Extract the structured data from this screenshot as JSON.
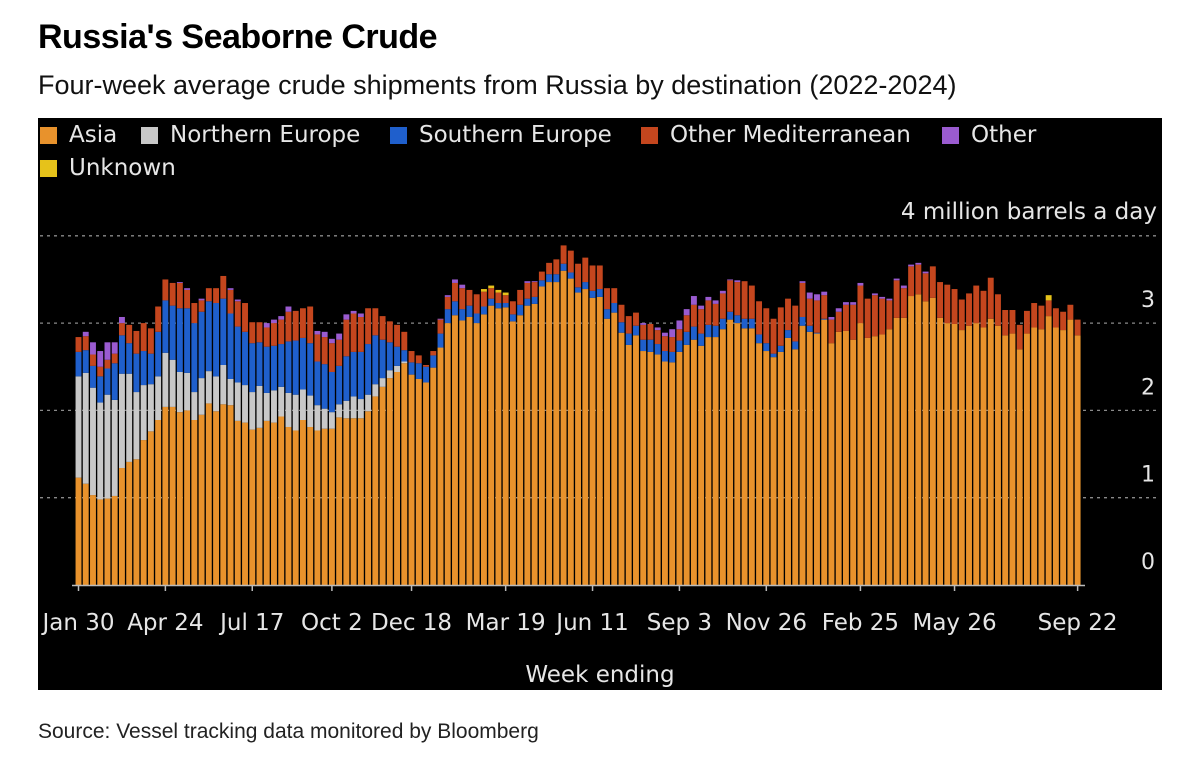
{
  "header": {
    "title": "Russia's Seaborne Crude",
    "subtitle": "Four-week average crude shipments from Russia by destination (2022-2024)"
  },
  "footer": {
    "source": "Source: Vessel tracking data monitored by Bloomberg"
  },
  "chart_data": {
    "type": "bar",
    "stacked": true,
    "title": "Russia's Seaborne Crude",
    "xlabel": "Week ending",
    "ylabel": "4 million barrels a day",
    "ylim": [
      0,
      4
    ],
    "y_ticks": [
      "0",
      "1",
      "2",
      "3"
    ],
    "grid": true,
    "legend_position": "top-left",
    "x_start": "2022-01-30",
    "x_end": "2024-09-22",
    "x_step": "weekly",
    "x_tick_labels": [
      {
        "label": "Jan 30",
        "index": 0
      },
      {
        "label": "Apr 24",
        "index": 12
      },
      {
        "label": "Jul 17",
        "index": 24
      },
      {
        "label": "Oct 2",
        "index": 35
      },
      {
        "label": "Dec 18",
        "index": 46
      },
      {
        "label": "Mar 19",
        "index": 59
      },
      {
        "label": "Jun 11",
        "index": 71
      },
      {
        "label": "Sep 3",
        "index": 83
      },
      {
        "label": "Nov 26",
        "index": 95
      },
      {
        "label": "Feb 25",
        "index": 108
      },
      {
        "label": "May 26",
        "index": 121
      },
      {
        "label": "Sep 22",
        "index": 138
      }
    ],
    "series": [
      {
        "name": "Asia",
        "color": "#e8922c",
        "values": [
          1.23,
          1.16,
          1.03,
          0.98,
          0.99,
          1.02,
          1.34,
          1.41,
          1.44,
          1.66,
          1.76,
          1.89,
          2.04,
          2.04,
          1.98,
          2.0,
          1.89,
          1.95,
          2.08,
          1.99,
          2.07,
          2.06,
          1.88,
          1.86,
          1.78,
          1.8,
          1.88,
          1.86,
          1.93,
          1.81,
          1.77,
          1.89,
          1.81,
          1.77,
          1.79,
          1.79,
          1.92,
          1.91,
          1.91,
          1.91,
          1.99,
          2.16,
          2.27,
          2.37,
          2.44,
          2.54,
          2.41,
          2.36,
          2.32,
          2.49,
          2.72,
          3.0,
          3.09,
          3.03,
          3.07,
          3.0,
          3.1,
          3.2,
          3.17,
          3.18,
          3.02,
          3.09,
          3.2,
          3.22,
          3.42,
          3.47,
          3.47,
          3.6,
          3.51,
          3.35,
          3.39,
          3.29,
          3.3,
          3.05,
          3.12,
          2.89,
          2.75,
          2.86,
          2.68,
          2.67,
          2.64,
          2.56,
          2.55,
          2.67,
          2.75,
          2.81,
          2.74,
          2.84,
          2.84,
          2.93,
          3.04,
          3.0,
          2.94,
          2.94,
          2.77,
          2.68,
          2.61,
          2.67,
          2.83,
          2.7,
          2.97,
          2.9,
          2.88,
          3.04,
          2.77,
          2.9,
          2.91,
          2.81,
          3.0,
          2.83,
          2.85,
          2.87,
          2.93,
          3.06,
          3.06,
          3.31,
          3.33,
          3.25,
          3.29,
          3.06,
          3.0,
          2.99,
          2.92,
          2.97,
          3.0,
          2.95,
          3.05,
          2.97,
          2.86,
          2.88,
          2.7,
          2.88,
          2.95,
          2.93,
          3.08,
          2.95,
          2.92,
          3.04,
          2.86
        ]
      },
      {
        "name": "Northern Europe",
        "color": "#c8c8c8",
        "values": [
          1.16,
          1.27,
          1.23,
          1.11,
          1.19,
          1.1,
          1.08,
          1.01,
          0.77,
          0.63,
          0.54,
          0.5,
          0.62,
          0.54,
          0.46,
          0.43,
          0.32,
          0.42,
          0.37,
          0.4,
          0.45,
          0.3,
          0.44,
          0.43,
          0.43,
          0.48,
          0.32,
          0.37,
          0.34,
          0.39,
          0.41,
          0.35,
          0.36,
          0.29,
          0.23,
          0.19,
          0.15,
          0.2,
          0.25,
          0.22,
          0.19,
          0.14,
          0.1,
          0.09,
          0.07,
          0.02,
          0,
          0,
          0,
          0,
          0,
          0,
          0,
          0,
          0,
          0,
          0,
          0,
          0,
          0,
          0,
          0,
          0,
          0,
          0,
          0,
          0,
          0,
          0,
          0,
          0,
          0,
          0,
          0,
          0,
          0,
          0,
          0,
          0,
          0,
          0,
          0,
          0,
          0,
          0,
          0,
          0,
          0,
          0,
          0,
          0,
          0,
          0,
          0,
          0,
          0,
          0,
          0,
          0,
          0,
          0,
          0,
          0,
          0,
          0,
          0,
          0,
          0,
          0,
          0,
          0,
          0,
          0,
          0,
          0,
          0,
          0,
          0,
          0,
          0,
          0,
          0,
          0,
          0,
          0,
          0,
          0,
          0,
          0,
          0,
          0,
          0,
          0,
          0,
          0,
          0,
          0,
          0,
          0
        ]
      },
      {
        "name": "Southern Europe",
        "color": "#1f5fcc",
        "values": [
          0.28,
          0.26,
          0.25,
          0.3,
          0.3,
          0.42,
          0.44,
          0.35,
          0.44,
          0.39,
          0.35,
          0.51,
          0.6,
          0.62,
          0.73,
          0.74,
          0.79,
          0.76,
          0.8,
          0.84,
          0.76,
          0.75,
          0.64,
          0.61,
          0.56,
          0.5,
          0.53,
          0.51,
          0.49,
          0.59,
          0.62,
          0.59,
          0.6,
          0.5,
          0.51,
          0.46,
          0.44,
          0.51,
          0.51,
          0.54,
          0.58,
          0.56,
          0.44,
          0.32,
          0.22,
          0.13,
          0.14,
          0.18,
          0.18,
          0.14,
          0.16,
          0.16,
          0.16,
          0.13,
          0.13,
          0.11,
          0.09,
          0.08,
          0.06,
          0.05,
          0.08,
          0.12,
          0.08,
          0.08,
          0.07,
          0.09,
          0.09,
          0.08,
          0.07,
          0.06,
          0.08,
          0.08,
          0.09,
          0.11,
          0.11,
          0.12,
          0.13,
          0.11,
          0.13,
          0.14,
          0.12,
          0.12,
          0.12,
          0.13,
          0.15,
          0.15,
          0.14,
          0.14,
          0.13,
          0.12,
          0.09,
          0.09,
          0.11,
          0.11,
          0.1,
          0.09,
          0.04,
          0.07,
          0.09,
          0.09,
          0.1,
          0.07,
          0.01,
          0.01,
          0,
          0,
          0,
          0,
          0,
          0,
          0,
          0,
          0,
          0,
          0,
          0,
          0,
          0,
          0,
          0,
          0,
          0,
          0,
          0,
          0,
          0,
          0,
          0,
          0,
          0,
          0,
          0,
          0,
          0,
          0,
          0,
          0,
          0,
          0
        ]
      },
      {
        "name": "Other Mediterranean",
        "color": "#c4461e",
        "values": [
          0.17,
          0.16,
          0.13,
          0.11,
          0.1,
          0.11,
          0.14,
          0.21,
          0.26,
          0.32,
          0.29,
          0.29,
          0.24,
          0.26,
          0.29,
          0.21,
          0.23,
          0.13,
          0.15,
          0.17,
          0.26,
          0.27,
          0.29,
          0.33,
          0.24,
          0.23,
          0.22,
          0.26,
          0.28,
          0.34,
          0.34,
          0.34,
          0.42,
          0.31,
          0.31,
          0.33,
          0.3,
          0.42,
          0.44,
          0.4,
          0.41,
          0.31,
          0.27,
          0.24,
          0.25,
          0.21,
          0.13,
          0.09,
          0.02,
          0.05,
          0.16,
          0.14,
          0.21,
          0.24,
          0.18,
          0.22,
          0.17,
          0.12,
          0.12,
          0.09,
          0.15,
          0.17,
          0.18,
          0.17,
          0.1,
          0.13,
          0.17,
          0.21,
          0.25,
          0.27,
          0.28,
          0.29,
          0.27,
          0.24,
          0.17,
          0.2,
          0.2,
          0.15,
          0.17,
          0.18,
          0.16,
          0.17,
          0.17,
          0.13,
          0.19,
          0.25,
          0.28,
          0.28,
          0.25,
          0.29,
          0.36,
          0.38,
          0.43,
          0.38,
          0.38,
          0.4,
          0.4,
          0.44,
          0.36,
          0.41,
          0.39,
          0.31,
          0.37,
          0.27,
          0.27,
          0.23,
          0.3,
          0.4,
          0.43,
          0.45,
          0.47,
          0.41,
          0.33,
          0.43,
          0.34,
          0.34,
          0.34,
          0.32,
          0.36,
          0.41,
          0.44,
          0.4,
          0.35,
          0.37,
          0.43,
          0.42,
          0.47,
          0.36,
          0.29,
          0.27,
          0.28,
          0.26,
          0.28,
          0.27,
          0.18,
          0.22,
          0.21,
          0.17,
          0.18
        ]
      },
      {
        "name": "Other",
        "color": "#9a5bd0",
        "values": [
          0,
          0.05,
          0.14,
          0.18,
          0.2,
          0.13,
          0.07,
          0,
          0,
          0,
          0,
          0,
          0,
          0,
          0.01,
          0.02,
          0,
          0.02,
          0,
          0,
          0,
          0.02,
          0.02,
          0,
          0,
          0,
          0.05,
          0.04,
          0.04,
          0.06,
          0,
          0,
          0,
          0.04,
          0.06,
          0.05,
          0.07,
          0.06,
          0.03,
          0.04,
          0,
          0,
          0,
          0,
          0,
          0,
          0,
          0,
          0,
          0,
          0.01,
          0.02,
          0.04,
          0.04,
          0,
          0,
          0,
          0,
          0,
          0,
          0,
          0,
          0.02,
          0.01,
          0,
          0,
          0,
          0,
          0,
          0,
          0,
          0,
          0,
          0,
          0,
          0,
          0,
          0,
          0.02,
          0,
          0.03,
          0.04,
          0.09,
          0.1,
          0.07,
          0.1,
          0.04,
          0.04,
          0.04,
          0.03,
          0.01,
          0.02,
          0,
          0,
          0,
          0,
          0,
          0,
          0,
          0,
          0.02,
          0.07,
          0.07,
          0.04,
          0.03,
          0.04,
          0.03,
          0.03,
          0.03,
          0,
          0.02,
          0.02,
          0.02,
          0.02,
          0.03,
          0.02,
          0.02,
          0.02,
          0,
          0,
          0,
          0,
          0,
          0,
          0,
          0,
          0,
          0,
          0,
          0,
          0,
          0,
          0,
          0,
          0,
          0,
          0,
          0,
          0
        ]
      },
      {
        "name": "Unknown",
        "color": "#e6c21a",
        "values": [
          0,
          0,
          0,
          0,
          0,
          0,
          0,
          0,
          0,
          0,
          0,
          0,
          0,
          0,
          0,
          0,
          0,
          0,
          0,
          0,
          0,
          0,
          0,
          0,
          0,
          0,
          0,
          0,
          0,
          0,
          0,
          0,
          0,
          0,
          0,
          0,
          0,
          0,
          0,
          0,
          0,
          0,
          0,
          0,
          0,
          0,
          0,
          0,
          0,
          0,
          0,
          0,
          0,
          0,
          0,
          0,
          0.03,
          0.03,
          0.03,
          0.03,
          0,
          0,
          0,
          0,
          0,
          0,
          0,
          0,
          0,
          0,
          0,
          0,
          0,
          0,
          0,
          0,
          0,
          0,
          0,
          0,
          0,
          0,
          0,
          0,
          0,
          0,
          0,
          0,
          0,
          0,
          0,
          0,
          0,
          0,
          0,
          0,
          0,
          0,
          0,
          0,
          0,
          0,
          0,
          0,
          0,
          0,
          0,
          0,
          0,
          0,
          0,
          0,
          0,
          0,
          0,
          0,
          0,
          0,
          0,
          0,
          0,
          0,
          0,
          0,
          0,
          0,
          0,
          0,
          0,
          0,
          0,
          0,
          0,
          0,
          0.06
        ]
      }
    ]
  }
}
